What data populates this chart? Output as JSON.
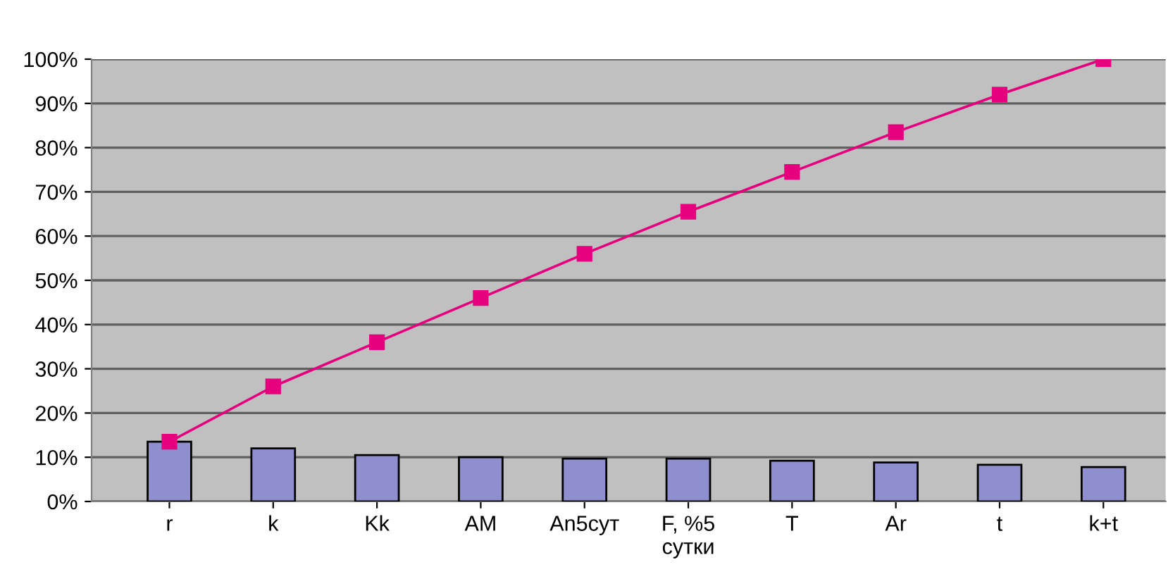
{
  "chart_data": {
    "type": "bar",
    "categories": [
      "r",
      "k",
      "Kk",
      "AM",
      "An5сут",
      "F, %5\nсутки",
      "T",
      "Ar",
      "t",
      "k+t"
    ],
    "series": [
      {
        "color": "#8f8fd0",
        "values": [
          13.5,
          12,
          10.5,
          10,
          9.7,
          9.7,
          9.2,
          8.8,
          8.3,
          7.8
        ]
      },
      {
        "type": "line",
        "color": "#e6007e",
        "marker": "square",
        "values": [
          13.5,
          26,
          36,
          46,
          56,
          65.5,
          74.5,
          83.5,
          92,
          100
        ]
      }
    ],
    "ylim": [
      0,
      100
    ],
    "yticks": [
      {
        "value": 0,
        "label": "0%"
      },
      {
        "value": 10,
        "label": "10%"
      },
      {
        "value": 20,
        "label": "20%"
      },
      {
        "value": 30,
        "label": "30%"
      },
      {
        "value": 40,
        "label": "40%"
      },
      {
        "value": 50,
        "label": "50%"
      },
      {
        "value": 60,
        "label": "60%"
      },
      {
        "value": 70,
        "label": "70%"
      },
      {
        "value": 80,
        "label": "80%"
      },
      {
        "value": 90,
        "label": "90%"
      },
      {
        "value": 100,
        "label": "100%"
      }
    ],
    "grid": "y"
  }
}
